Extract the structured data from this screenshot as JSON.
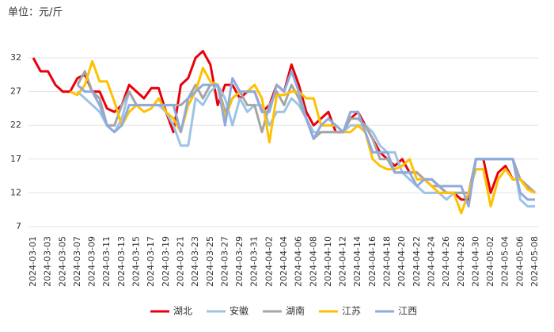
{
  "chart_data": {
    "type": "line",
    "unit_label": "单位：元/斤",
    "categories": [
      "2024-03-01",
      null,
      "2024-03-03",
      null,
      "2024-03-05",
      null,
      "2024-03-07",
      null,
      "2024-03-09",
      null,
      "2024-03-11",
      null,
      "2024-03-13",
      null,
      "2024-03-15",
      null,
      "2024-03-17",
      null,
      "2024-03-19",
      null,
      "2024-03-21",
      null,
      "2024-03-23",
      null,
      "2024-03-25",
      null,
      "2024-03-27",
      null,
      "2024-03-29",
      null,
      "2024-03-31",
      null,
      "2024-04-02",
      null,
      "2024-04-04",
      null,
      "2024-04-06",
      null,
      "2024-04-08",
      null,
      "2024-04-10",
      null,
      "2024-04-12",
      null,
      "2024-04-14",
      null,
      "2024-04-16",
      null,
      "2024-04-18",
      null,
      "2024-04-20",
      null,
      "2024-04-22",
      null,
      "2024-04-24",
      null,
      "2024-04-26",
      null,
      "2024-04-28",
      null,
      "2024-04-30",
      null,
      "2024-05-02",
      null,
      "2024-05-04",
      null,
      "2024-05-06",
      null,
      "2024-05-08"
    ],
    "ylim": [
      7,
      32
    ],
    "yticks": [
      7,
      12,
      17,
      22,
      27,
      32
    ],
    "grid": true,
    "series": [
      {
        "name": "湖北",
        "color": "#e8000b",
        "values": [
          32,
          30,
          30,
          28,
          27,
          27,
          29,
          29.5,
          27,
          27,
          24.5,
          24,
          25,
          28,
          27,
          26,
          27.5,
          27.5,
          24,
          21,
          28,
          29,
          32,
          33,
          31,
          25,
          28,
          28,
          26,
          27,
          27,
          24,
          25,
          28,
          27,
          31,
          28,
          24,
          22,
          23,
          24,
          21,
          21,
          23,
          24,
          22,
          20,
          18,
          17,
          16,
          17,
          15,
          15,
          14,
          14,
          13,
          12,
          12,
          11,
          11,
          17,
          17,
          12,
          15,
          16,
          14,
          14,
          13,
          12
        ]
      },
      {
        "name": "安徽",
        "color": "#9dc3e6",
        "values": [
          null,
          null,
          null,
          null,
          null,
          null,
          27,
          26,
          25,
          24,
          22,
          21,
          23,
          27,
          25,
          25,
          25,
          25,
          24,
          22,
          19,
          19,
          26,
          25,
          27,
          28,
          26,
          22,
          26,
          24,
          25,
          25,
          22,
          24,
          24,
          26,
          25,
          23,
          21,
          21,
          21,
          21,
          21,
          22,
          22,
          22,
          21,
          19,
          18,
          18,
          15,
          14,
          13,
          12,
          12,
          12,
          11,
          12,
          12,
          12,
          17,
          17,
          17,
          17,
          17,
          17,
          11,
          10,
          10
        ]
      },
      {
        "name": "湖南",
        "color": "#a5a5a5",
        "values": [
          null,
          null,
          null,
          null,
          null,
          null,
          28,
          30,
          27,
          26,
          22,
          22,
          25,
          27,
          25,
          25,
          25,
          25,
          25,
          25,
          25,
          26,
          28,
          26,
          28,
          28,
          24,
          26,
          27,
          25,
          25,
          21,
          25,
          27,
          25,
          28,
          26,
          23,
          20,
          21,
          21,
          21,
          21,
          23,
          23,
          22,
          20,
          17,
          17,
          15,
          15,
          15,
          15,
          14,
          13,
          13,
          12,
          12,
          12,
          12,
          17,
          17,
          17,
          17,
          17,
          17,
          14,
          13,
          12
        ]
      },
      {
        "name": "江苏",
        "color": "#ffc000",
        "values": [
          null,
          null,
          null,
          null,
          null,
          27,
          26.5,
          28,
          31.5,
          28.5,
          28.5,
          25.5,
          22,
          24,
          25,
          24,
          24.5,
          26,
          24,
          23,
          21,
          25,
          27,
          30.5,
          28.5,
          28,
          23,
          26,
          27,
          27,
          28,
          26,
          19.5,
          26.5,
          26.5,
          27,
          27,
          26,
          26,
          22,
          22,
          22,
          21,
          21,
          22,
          21,
          17,
          16,
          15.5,
          15.5,
          16,
          17,
          14,
          14,
          13,
          12,
          12,
          12,
          9,
          12,
          15.5,
          15.5,
          10,
          14,
          15.5,
          14,
          14,
          12.5,
          12
        ]
      },
      {
        "name": "江西",
        "color": "#8faadc",
        "values": [
          null,
          null,
          null,
          null,
          null,
          null,
          28,
          27,
          27,
          25,
          22,
          21,
          22,
          25,
          25,
          25,
          25,
          25,
          25,
          25,
          21,
          26,
          27,
          28,
          28,
          28,
          22,
          29,
          27,
          27,
          27,
          24,
          24,
          28,
          27,
          30,
          27,
          23,
          20,
          22,
          23,
          22,
          21,
          24,
          24,
          21,
          18,
          18,
          18,
          15,
          15,
          15,
          13,
          14,
          14,
          13,
          13,
          13,
          13,
          10,
          17,
          17,
          17,
          17,
          17,
          17,
          12,
          11,
          11
        ]
      }
    ]
  }
}
